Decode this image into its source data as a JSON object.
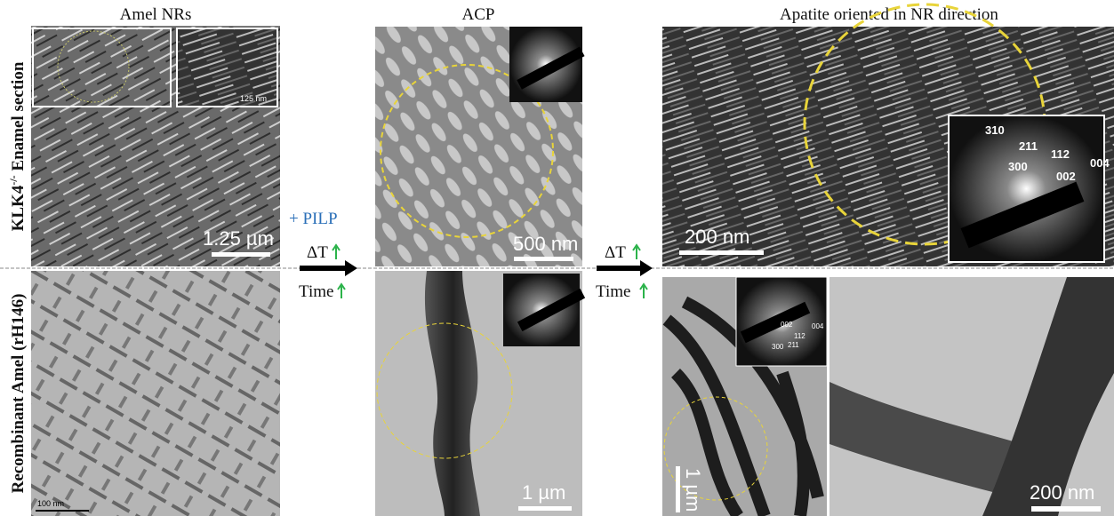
{
  "columns": [
    "Amel NRs",
    "ACP",
    "Apatite oriented in NR direction"
  ],
  "rows": [
    {
      "label": "KLK4",
      "superscript": "-/-",
      "suffix": " Enamel section"
    },
    {
      "label": "Recombinant Amel (rH146)"
    }
  ],
  "transitions": [
    {
      "additive": "+ PILP",
      "temperature": "ΔT",
      "time": "Time"
    },
    {
      "temperature": "ΔT",
      "time": "Time"
    }
  ],
  "panels": {
    "enamel_nr": {
      "scale_bar": "1.25 µm",
      "inset_scale_bar": "125 nm"
    },
    "enamel_acp": {
      "scale_bar": "500 nm"
    },
    "enamel_apatite": {
      "scale_bar": "200 nm",
      "diffraction": [
        "310",
        "211",
        "112",
        "300",
        "002",
        "004"
      ]
    },
    "recombinant_nr": {
      "scale_bar": "100 nm"
    },
    "recombinant_acp": {
      "scale_bar": "1 µm"
    },
    "recombinant_apatite_overview": {
      "scale_bar": "1 µm",
      "diffraction": [
        "002",
        "004",
        "112",
        "300",
        "211"
      ]
    },
    "recombinant_apatite_detail": {
      "scale_bar": "200 nm"
    }
  }
}
